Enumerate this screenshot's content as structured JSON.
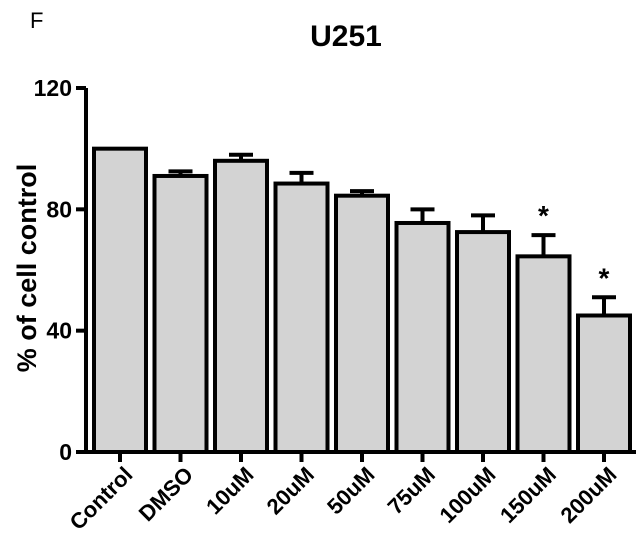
{
  "panel_label": "F",
  "chart_data": {
    "type": "bar",
    "title": "U251",
    "xlabel": "",
    "ylabel": "% of cell control",
    "ylim": [
      0,
      120
    ],
    "yticks": [
      0,
      40,
      80,
      120
    ],
    "categories": [
      "Control",
      "DMSO",
      "10uM",
      "20uM",
      "50uM",
      "75uM",
      "100uM",
      "150uM",
      "200uM"
    ],
    "values": [
      100,
      91,
      96,
      88.5,
      84.5,
      75.5,
      72.5,
      64.5,
      45
    ],
    "errors": [
      0,
      1.5,
      2,
      3.5,
      1.5,
      4.5,
      5.5,
      7,
      6
    ],
    "significance": [
      "",
      "",
      "",
      "",
      "",
      "",
      "",
      "*",
      "*"
    ],
    "grid": false,
    "bar_color": "#d3d3d3",
    "edge_color": "#000000"
  }
}
